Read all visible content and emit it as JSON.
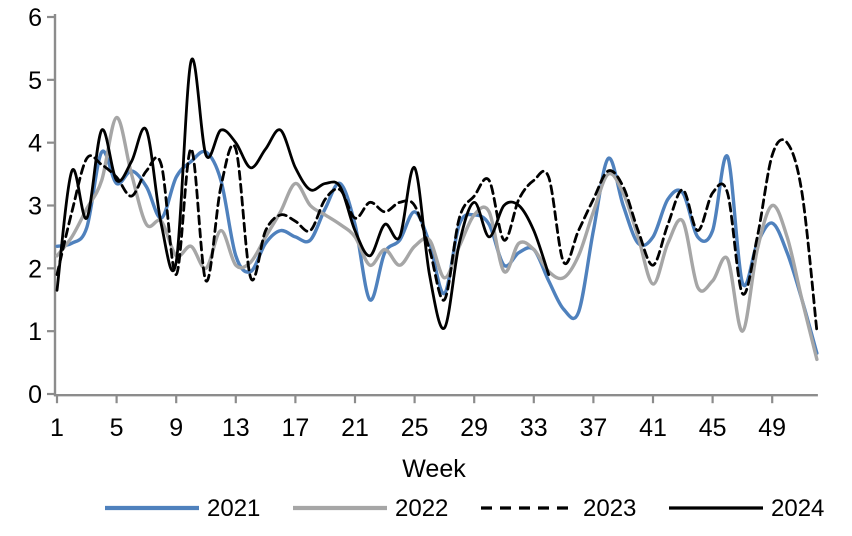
{
  "chart_data": {
    "type": "line",
    "title": "",
    "xlabel": "Week",
    "ylabel": "",
    "ylim": [
      0,
      6
    ],
    "y_ticks": [
      0,
      1,
      2,
      3,
      4,
      5,
      6
    ],
    "x_ticks": [
      1,
      5,
      9,
      13,
      17,
      21,
      25,
      29,
      33,
      37,
      41,
      45,
      49
    ],
    "grid": false,
    "legend_position": "bottom",
    "axis_color": "#8C8C8C",
    "text_color": "#000000",
    "weeks": [
      1,
      2,
      3,
      4,
      5,
      6,
      7,
      8,
      9,
      10,
      11,
      12,
      13,
      14,
      15,
      16,
      17,
      18,
      19,
      20,
      21,
      22,
      23,
      24,
      25,
      26,
      27,
      28,
      29,
      30,
      31,
      32,
      33,
      34,
      35,
      36,
      37,
      38,
      39,
      40,
      41,
      42,
      43,
      44,
      45,
      46,
      47,
      48,
      49,
      50,
      51,
      52
    ],
    "series": [
      {
        "name": "2021",
        "color": "#4F81BD",
        "dash": "solid",
        "values": [
          2.35,
          2.4,
          2.65,
          3.85,
          3.35,
          3.55,
          3.3,
          2.8,
          3.45,
          3.7,
          3.85,
          3.4,
          2.2,
          1.95,
          2.4,
          2.6,
          2.5,
          2.45,
          2.95,
          3.35,
          2.7,
          1.5,
          2.25,
          2.45,
          2.9,
          2.4,
          1.6,
          2.7,
          2.85,
          2.7,
          2.05,
          2.25,
          2.3,
          1.8,
          1.35,
          1.3,
          2.6,
          3.75,
          3.0,
          2.4,
          2.5,
          3.1,
          3.2,
          2.5,
          2.6,
          3.78,
          1.77,
          2.4,
          2.72,
          2.25,
          1.5,
          0.65
        ]
      },
      {
        "name": "2022",
        "color": "#A6A6A6",
        "dash": "solid",
        "values": [
          2.2,
          2.5,
          2.95,
          3.4,
          4.4,
          3.5,
          2.7,
          2.75,
          2.2,
          2.35,
          2.0,
          2.6,
          2.05,
          2.1,
          2.5,
          2.9,
          3.35,
          3.0,
          2.85,
          2.7,
          2.5,
          2.05,
          2.3,
          2.05,
          2.35,
          2.45,
          1.85,
          2.35,
          2.85,
          2.9,
          1.95,
          2.4,
          2.3,
          1.95,
          1.85,
          2.2,
          2.9,
          3.5,
          3.2,
          2.5,
          1.75,
          2.4,
          2.75,
          1.7,
          1.8,
          2.15,
          1.0,
          2.3,
          3.0,
          2.5,
          1.5,
          0.55
        ]
      },
      {
        "name": "2023",
        "color": "#000000",
        "dash": "dashed",
        "values": [
          1.9,
          2.9,
          3.75,
          3.65,
          3.45,
          3.15,
          3.55,
          3.65,
          1.9,
          3.9,
          1.8,
          3.3,
          3.9,
          1.85,
          2.6,
          2.85,
          2.75,
          2.6,
          3.1,
          3.25,
          2.8,
          3.05,
          2.9,
          3.05,
          3.0,
          2.3,
          1.5,
          2.8,
          3.15,
          3.4,
          2.45,
          3.1,
          3.4,
          3.45,
          2.1,
          2.6,
          3.1,
          3.55,
          3.3,
          2.6,
          2.05,
          2.7,
          3.25,
          2.6,
          3.2,
          3.2,
          1.6,
          2.5,
          3.8,
          4.0,
          3.2,
          1.0
        ]
      },
      {
        "name": "2024",
        "color": "#000000",
        "dash": "solid",
        "values": [
          1.65,
          3.55,
          2.8,
          4.2,
          3.4,
          3.7,
          4.2,
          2.7,
          2.1,
          5.3,
          3.8,
          4.2,
          4.0,
          3.6,
          3.9,
          4.2,
          3.6,
          3.25,
          3.35,
          3.3,
          2.6,
          2.2,
          2.7,
          2.5,
          3.6,
          1.9,
          1.05,
          2.4,
          3.05,
          2.5,
          3.0,
          3.0,
          2.6,
          1.9
        ]
      }
    ]
  }
}
